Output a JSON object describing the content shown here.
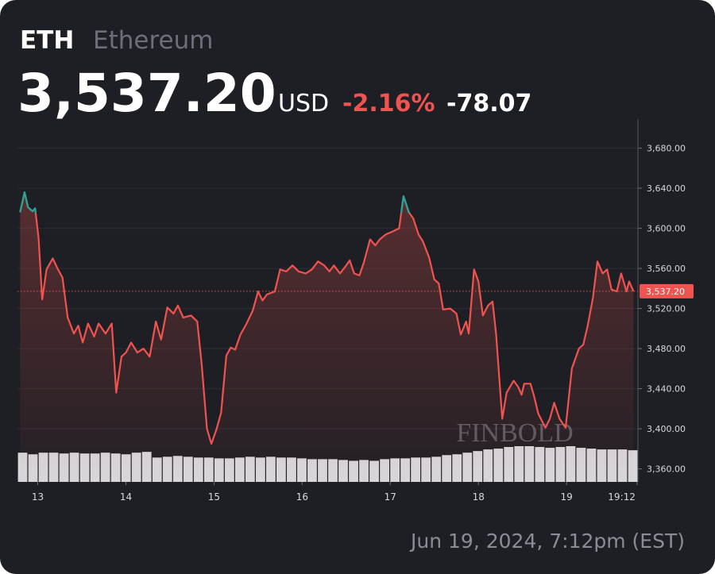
{
  "header": {
    "symbol": "ETH",
    "name": "Ethereum",
    "price": "3,537.20",
    "currency": "USD",
    "change_pct": "-2.16%",
    "change": "-78.07"
  },
  "chart_data": {
    "type": "line",
    "x": [
      12.8,
      12.85,
      12.89,
      12.94,
      12.97,
      13.01,
      13.05,
      13.1,
      13.17,
      13.23,
      13.28,
      13.34,
      13.41,
      13.46,
      13.51,
      13.57,
      13.64,
      13.69,
      13.77,
      13.84,
      13.89,
      13.95,
      14.0,
      14.06,
      14.13,
      14.2,
      14.27,
      14.34,
      14.4,
      14.47,
      14.54,
      14.59,
      14.65,
      14.74,
      14.81,
      14.86,
      14.92,
      14.97,
      15.03,
      15.08,
      15.14,
      15.19,
      15.24,
      15.3,
      15.37,
      15.44,
      15.5,
      15.55,
      15.6,
      15.69,
      15.75,
      15.82,
      15.89,
      15.96,
      16.04,
      16.11,
      16.18,
      16.25,
      16.31,
      16.36,
      16.43,
      16.5,
      16.54,
      16.59,
      16.65,
      16.7,
      16.77,
      16.83,
      16.88,
      16.95,
      17.03,
      17.1,
      17.15,
      17.21,
      17.26,
      17.32,
      17.37,
      17.44,
      17.5,
      17.55,
      17.6,
      17.68,
      17.75,
      17.8,
      17.86,
      17.89,
      17.95,
      18.0,
      18.05,
      18.11,
      18.16,
      18.2,
      18.27,
      18.32,
      18.4,
      18.45,
      18.49,
      18.52,
      18.59,
      18.63,
      18.68,
      18.76,
      18.81,
      18.86,
      18.92,
      18.99,
      19.06,
      19.14,
      19.19,
      19.24,
      19.3,
      19.35,
      19.41,
      19.46,
      19.51,
      19.57,
      19.62,
      19.68,
      19.71,
      19.76
    ],
    "series": [
      {
        "color": "#f05350",
        "up_color": "#26a69a",
        "values": [
          3616,
          3636,
          3621,
          3617,
          3620,
          3590,
          3529,
          3559,
          3570,
          3559,
          3551,
          3511,
          3495,
          3503,
          3486,
          3505,
          3492,
          3505,
          3495,
          3505,
          3436,
          3472,
          3476,
          3486,
          3476,
          3480,
          3472,
          3507,
          3489,
          3521,
          3515,
          3523,
          3511,
          3513,
          3507,
          3464,
          3400,
          3385,
          3400,
          3416,
          3473,
          3481,
          3479,
          3494,
          3505,
          3518,
          3537,
          3528,
          3534,
          3537,
          3559,
          3557,
          3563,
          3557,
          3555,
          3559,
          3567,
          3563,
          3557,
          3563,
          3555,
          3563,
          3568,
          3555,
          3553,
          3566,
          3589,
          3583,
          3589,
          3594,
          3597,
          3600,
          3632,
          3616,
          3610,
          3594,
          3587,
          3571,
          3549,
          3545,
          3519,
          3520,
          3515,
          3494,
          3507,
          3495,
          3559,
          3547,
          3513,
          3523,
          3527,
          3495,
          3410,
          3436,
          3448,
          3442,
          3434,
          3445,
          3445,
          3433,
          3415,
          3401,
          3410,
          3426,
          3410,
          3401,
          3460,
          3480,
          3484,
          3503,
          3531,
          3567,
          3555,
          3559,
          3539,
          3537,
          3555,
          3537,
          3547,
          3537
        ]
      }
    ],
    "volume": {
      "color": "#d7d8dc",
      "values": [
        36,
        34,
        36,
        36,
        35,
        36,
        35,
        35,
        36,
        35,
        34,
        36,
        37,
        30,
        31,
        32,
        31,
        30,
        30,
        29,
        29,
        30,
        31,
        30,
        31,
        30,
        30,
        29,
        28,
        28,
        28,
        27,
        26,
        27,
        26,
        28,
        29,
        29,
        30,
        30,
        31,
        33,
        34,
        36,
        38,
        40,
        41,
        43,
        44,
        44,
        43,
        42,
        43,
        44,
        42,
        41,
        40,
        40,
        40,
        39
      ]
    },
    "xlim": [
      12.77,
      19.81
    ],
    "xticks": [
      13,
      14,
      15,
      16,
      17,
      18,
      19,
      {
        "value": 19.8,
        "label": "19:12"
      }
    ],
    "ylim": [
      3347,
      3709
    ],
    "yticks": [
      {
        "value": 3360,
        "label": "3,360.00"
      },
      {
        "value": 3400,
        "label": "3,400.00"
      },
      {
        "value": 3440,
        "label": "3,440.00"
      },
      {
        "value": 3480,
        "label": "3,480.00"
      },
      {
        "value": 3520,
        "label": "3,520.00"
      },
      {
        "value": 3560,
        "label": "3,560.00"
      },
      {
        "value": 3600,
        "label": "3,600.00"
      },
      {
        "value": 3640,
        "label": "3,640.00"
      },
      {
        "value": 3680,
        "label": "3,680.00"
      }
    ],
    "grid": true,
    "watermark": "FINBOLD"
  },
  "footer": "Jun 19, 2024, 7:12pm (EST)"
}
